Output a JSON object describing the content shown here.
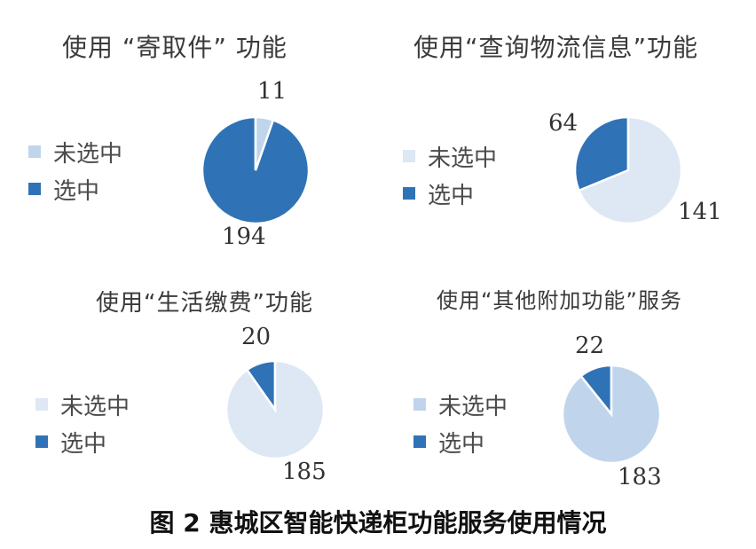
{
  "chart_data": [
    {
      "type": "pie",
      "title": "使用 “寄取件” 功能",
      "categories": [
        "未选中",
        "选中"
      ],
      "values": [
        11,
        194
      ],
      "colors": [
        "#c0d5eb",
        "#2f73b6"
      ],
      "legend": "left"
    },
    {
      "type": "pie",
      "title": "使用“查询物流信息”功能",
      "categories": [
        "未选中",
        "选中"
      ],
      "values": [
        141,
        64
      ],
      "colors": [
        "#dde8f4",
        "#2f73b6"
      ],
      "legend": "left"
    },
    {
      "type": "pie",
      "title": "使用“生活缴费”功能",
      "categories": [
        "未选中",
        "选中"
      ],
      "values": [
        185,
        20
      ],
      "colors": [
        "#dde8f4",
        "#2f73b6"
      ],
      "legend": "left"
    },
    {
      "type": "pie",
      "title": "使用“其他附加功能”服务",
      "categories": [
        "未选中",
        "选中"
      ],
      "values": [
        183,
        22
      ],
      "colors": [
        "#c0d5eb",
        "#2f73b6"
      ],
      "legend": "left"
    }
  ],
  "caption": "图 2  惠城区智能快递柜功能服务使用情况"
}
